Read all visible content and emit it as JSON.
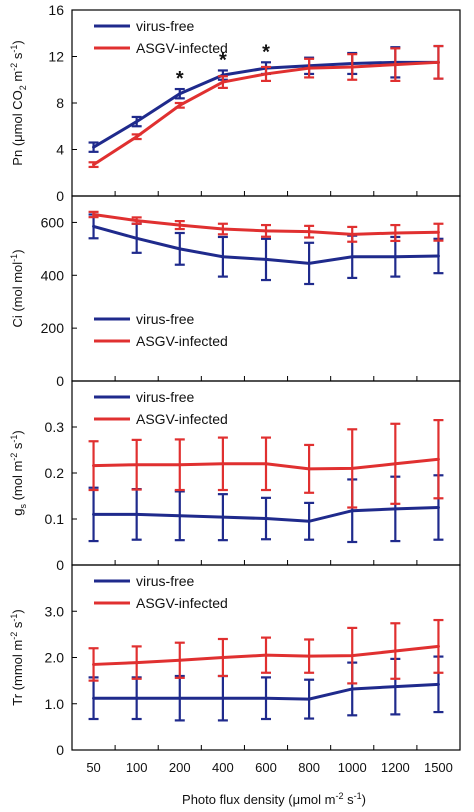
{
  "colors": {
    "virus_free": "#1f2a8c",
    "asgv": "#e03030",
    "axis": "#000000"
  },
  "chart_data": [
    {
      "type": "line",
      "ylabel_parts": {
        "main": "Pn (μmol CO",
        "sub": "2",
        "mid": " m",
        "sup1": "-2",
        "mid2": " s",
        "sup2": "-1",
        "end": ")"
      },
      "ylim": [
        0,
        16
      ],
      "yticks": [
        0,
        4,
        8,
        12,
        16
      ],
      "ytick_labels": [
        "0",
        "4",
        "8",
        "12",
        "16"
      ],
      "categories": [
        "50",
        "100",
        "200",
        "400",
        "600",
        "800",
        "1000",
        "1200",
        "1500"
      ],
      "series": [
        {
          "name": "virus-free",
          "values": [
            4.2,
            6.4,
            8.8,
            10.4,
            11.0,
            11.2,
            11.4,
            11.5,
            11.5
          ],
          "err": [
            0.4,
            0.4,
            0.4,
            0.4,
            0.5,
            0.7,
            0.9,
            1.3,
            1.4
          ]
        },
        {
          "name": "ASGV-infected",
          "values": [
            2.7,
            5.1,
            7.8,
            9.8,
            10.5,
            11.0,
            11.1,
            11.3,
            11.5
          ],
          "err": [
            0.2,
            0.2,
            0.2,
            0.5,
            0.6,
            0.8,
            1.1,
            1.4,
            1.4
          ]
        }
      ],
      "significance": [
        {
          "index": 2,
          "mark": "*"
        },
        {
          "index": 3,
          "mark": "*"
        },
        {
          "index": 4,
          "mark": "*"
        }
      ],
      "legend": "top-left"
    },
    {
      "type": "line",
      "ylabel_parts": {
        "main": "Ci (mol mol",
        "sup1": "-1",
        "end": ")"
      },
      "ylim": [
        0,
        700
      ],
      "yticks": [
        0,
        200,
        400,
        600
      ],
      "ytick_labels": [
        "0",
        "200",
        "400",
        "600"
      ],
      "categories": [
        "50",
        "100",
        "200",
        "400",
        "600",
        "800",
        "1000",
        "1200",
        "1500"
      ],
      "series": [
        {
          "name": "virus-free",
          "values": [
            585,
            540,
            500,
            470,
            460,
            445,
            470,
            470,
            473
          ],
          "err": [
            45,
            55,
            60,
            75,
            78,
            78,
            80,
            75,
            65
          ]
        },
        {
          "name": "ASGV-infected",
          "values": [
            630,
            607,
            590,
            575,
            568,
            565,
            555,
            560,
            563
          ],
          "err": [
            10,
            12,
            15,
            20,
            22,
            22,
            28,
            30,
            32
          ]
        }
      ],
      "legend": "bottom-left"
    },
    {
      "type": "line",
      "ylabel_parts": {
        "main": "g",
        "sub": "s",
        "mid": " (mol m",
        "sup1": "-2",
        "mid2": " s",
        "sup2": "-1",
        "end": ")"
      },
      "ylim": [
        0,
        0.4
      ],
      "yticks": [
        0,
        0.1,
        0.2,
        0.3
      ],
      "ytick_labels": [
        "0",
        "0.1",
        "0.2",
        "0.3"
      ],
      "categories": [
        "50",
        "100",
        "200",
        "400",
        "600",
        "800",
        "1000",
        "1200",
        "1500"
      ],
      "series": [
        {
          "name": "virus-free",
          "values": [
            0.11,
            0.11,
            0.107,
            0.104,
            0.101,
            0.095,
            0.118,
            0.122,
            0.125
          ],
          "err": [
            0.058,
            0.055,
            0.053,
            0.05,
            0.045,
            0.04,
            0.068,
            0.07,
            0.07
          ]
        },
        {
          "name": "ASGV-infected",
          "values": [
            0.216,
            0.218,
            0.218,
            0.22,
            0.22,
            0.209,
            0.21,
            0.22,
            0.23
          ],
          "err": [
            0.053,
            0.054,
            0.055,
            0.057,
            0.057,
            0.052,
            0.085,
            0.087,
            0.085
          ]
        }
      ],
      "legend": "top-left"
    },
    {
      "type": "line",
      "ylabel_parts": {
        "main": "Tr (mmol m",
        "sup1": "-2",
        "mid2": " s",
        "sup2": "-1",
        "end": ")"
      },
      "ylim": [
        0,
        4.0
      ],
      "yticks": [
        0,
        1.0,
        2.0,
        3.0
      ],
      "ytick_labels": [
        "0",
        "1.0",
        "2.0",
        "3.0"
      ],
      "categories": [
        "50",
        "100",
        "200",
        "400",
        "600",
        "800",
        "1000",
        "1200",
        "1500"
      ],
      "series": [
        {
          "name": "virus-free",
          "values": [
            1.12,
            1.12,
            1.12,
            1.12,
            1.12,
            1.1,
            1.32,
            1.37,
            1.42
          ],
          "err": [
            0.45,
            0.45,
            0.48,
            0.48,
            0.45,
            0.42,
            0.57,
            0.6,
            0.6
          ]
        },
        {
          "name": "ASGV-infected",
          "values": [
            1.85,
            1.89,
            1.94,
            2.0,
            2.05,
            2.03,
            2.04,
            2.14,
            2.24
          ],
          "err": [
            0.35,
            0.35,
            0.38,
            0.4,
            0.38,
            0.36,
            0.6,
            0.6,
            0.57
          ]
        }
      ],
      "legend": "top-left"
    }
  ],
  "xlabel_parts": {
    "main": "Photo flux density (μmol m",
    "sup1": "-2",
    "mid2": " s",
    "sup2": "-1",
    "end": ")"
  }
}
